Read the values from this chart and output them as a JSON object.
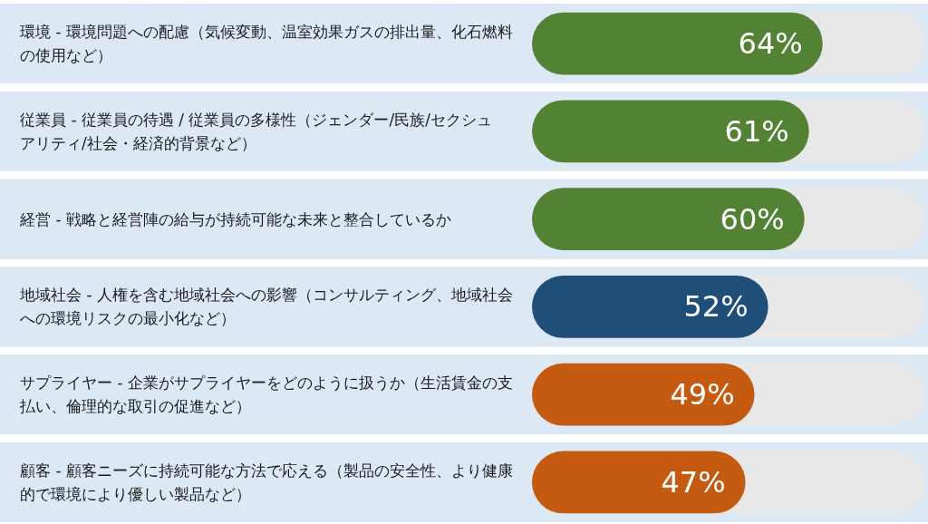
{
  "chart_data": {
    "type": "bar",
    "orientation": "horizontal",
    "categories": [
      "環境 - 環境問題への配慮（気候変動、温室効果ガスの排出量、化石燃料の使用など）",
      "従業員 - 従業員の待遇 / 従業員の多様性（ジェンダー/民族/セクシュアリティ/社会・経済的背景など）",
      "経営 - 戦略と経営陣の給与が持続可能な未来と整合しているか",
      "地域社会 - 人権を含む地域社会への影響（コンサルティング、地域社会への環境リスクの最小化など）",
      "サプライヤー - 企業がサプライヤーをどのように扱うか（生活賃金の支払い、倫理的な取引の促進など）",
      "顧客 - 顧客ニーズに持続可能な方法で応える（製品の安全性、より健康的で環境により優しい製品など）"
    ],
    "values": [
      64,
      61,
      60,
      52,
      49,
      47
    ],
    "value_labels": [
      "64%",
      "61%",
      "60%",
      "52%",
      "49%",
      "47%"
    ],
    "colors": [
      "#548235",
      "#548235",
      "#548235",
      "#1f4e79",
      "#c55a11",
      "#c55a11"
    ]
  }
}
